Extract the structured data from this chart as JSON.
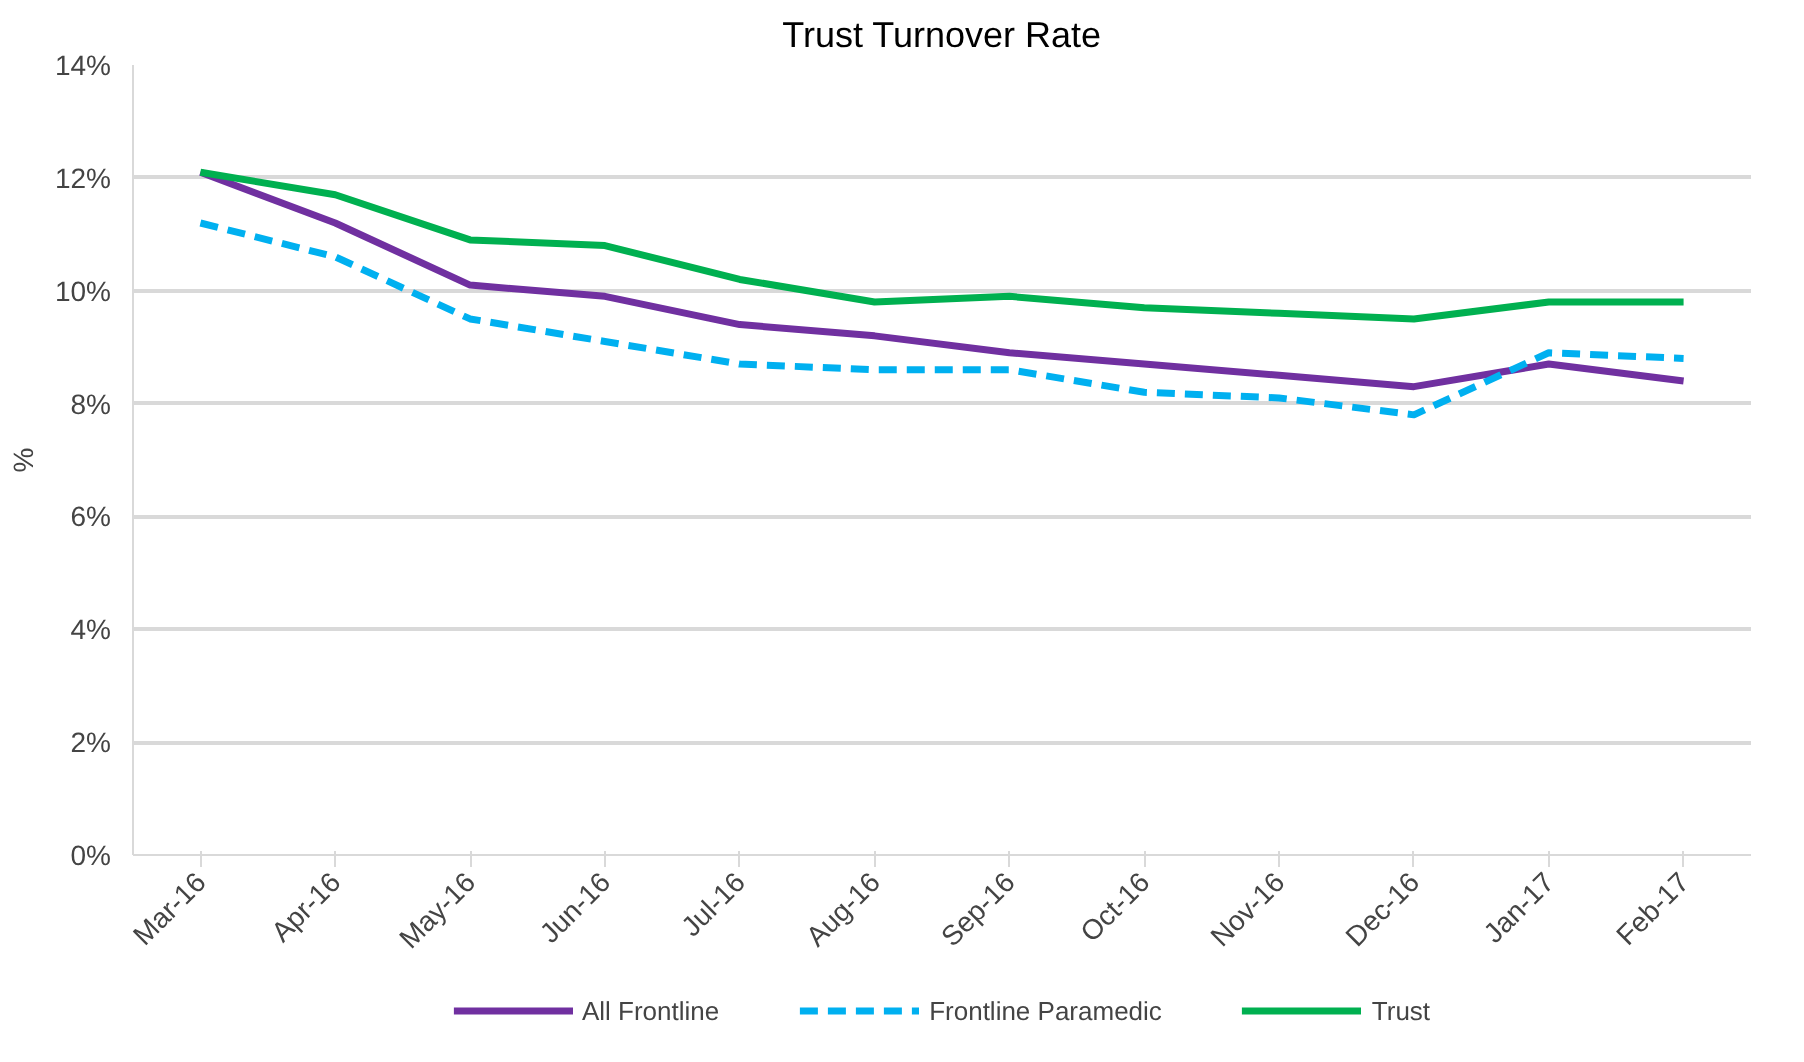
{
  "chart_data": {
    "type": "line",
    "title": "Trust Turnover Rate",
    "ylabel": "%",
    "categories": [
      "Mar-16",
      "Apr-16",
      "May-16",
      "Jun-16",
      "Jul-16",
      "Aug-16",
      "Sep-16",
      "Oct-16",
      "Nov-16",
      "Dec-16",
      "Jan-17",
      "Feb-17"
    ],
    "series": [
      {
        "name": "All Frontline",
        "color": "#7030a0",
        "line_style": "solid",
        "values": [
          12.1,
          11.2,
          10.1,
          9.9,
          9.4,
          9.2,
          8.9,
          8.7,
          8.5,
          8.3,
          8.7,
          8.4
        ]
      },
      {
        "name": "Frontline Paramedic",
        "color": "#00b0f0",
        "line_style": "dashed",
        "values": [
          11.2,
          10.6,
          9.5,
          9.1,
          8.7,
          8.6,
          8.6,
          8.2,
          8.1,
          7.8,
          8.9,
          8.8
        ]
      },
      {
        "name": "Trust",
        "color": "#00b050",
        "line_style": "solid",
        "values": [
          12.1,
          11.7,
          10.9,
          10.8,
          10.2,
          9.8,
          9.9,
          9.7,
          9.6,
          9.5,
          9.8,
          9.8
        ]
      }
    ],
    "ylim": [
      0,
      14
    ],
    "yticks": [
      {
        "value": 0,
        "label": "0%"
      },
      {
        "value": 2,
        "label": "2%"
      },
      {
        "value": 4,
        "label": "4%"
      },
      {
        "value": 6,
        "label": "6%"
      },
      {
        "value": 8,
        "label": "8%"
      },
      {
        "value": 10,
        "label": "10%"
      },
      {
        "value": 12,
        "label": "12%"
      },
      {
        "value": 14,
        "label": "14%"
      }
    ],
    "grid": "y",
    "legend": "bottom",
    "marker": "none"
  }
}
